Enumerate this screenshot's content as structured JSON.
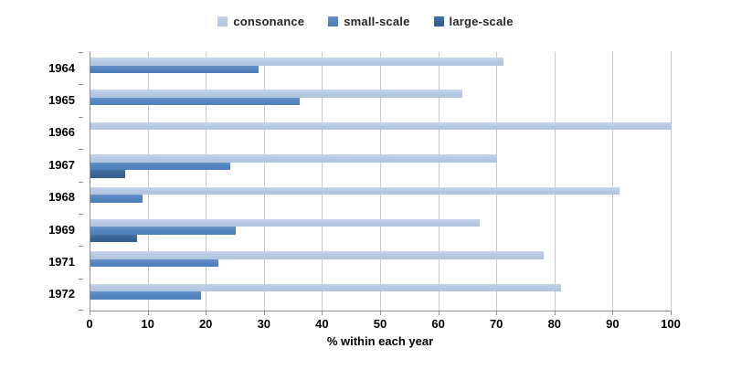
{
  "chart_data": {
    "type": "bar",
    "orientation": "horizontal",
    "categories": [
      "1964",
      "1965",
      "1966",
      "1967",
      "1968",
      "1969",
      "1971",
      "1972"
    ],
    "series": [
      {
        "name": "consonance",
        "color": "#b3c6e0",
        "color_light": "#c5d3ea",
        "values": [
          71,
          64,
          100,
          70,
          91,
          67,
          78,
          81
        ]
      },
      {
        "name": "small-scale",
        "color": "#4f81bd",
        "color_light": "#6591c7",
        "values": [
          29,
          36,
          0,
          24,
          9,
          25,
          22,
          19
        ]
      },
      {
        "name": "large-scale",
        "color": "#366092",
        "color_light": "#45709f",
        "values": [
          0,
          0,
          0,
          6,
          0,
          8,
          0,
          0
        ]
      }
    ],
    "title": "",
    "xlabel": "% within each year",
    "ylabel": "",
    "xlim": [
      0,
      100
    ],
    "xticks": [
      0,
      10,
      20,
      30,
      40,
      50,
      60,
      70,
      80,
      90,
      100
    ],
    "grid": "vertical",
    "legend_position": "top",
    "gridline_color": "#c9c9c9",
    "axis_line_color": "#8f8f8f"
  },
  "legend": {
    "items": [
      {
        "label": "consonance"
      },
      {
        "label": "small-scale"
      },
      {
        "label": "large-scale"
      }
    ]
  },
  "axis": {
    "x_title": "% within each year"
  }
}
